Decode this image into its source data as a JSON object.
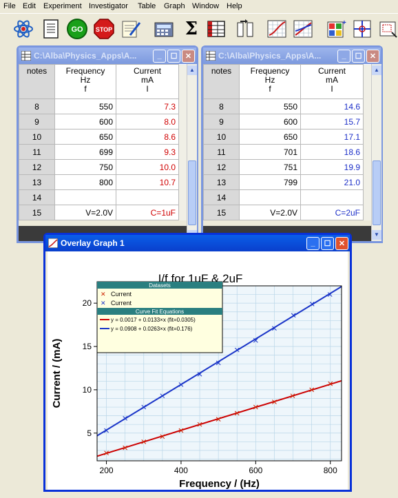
{
  "menu": [
    "File",
    "Edit",
    "Experiment",
    "Investigator",
    "Table",
    "Graph",
    "Window",
    "Help"
  ],
  "toolbar": {
    "buttons": [
      {
        "name": "atom-icon",
        "label": ""
      },
      {
        "name": "notebook-icon",
        "label": ""
      },
      {
        "name": "go-button",
        "label": "GO"
      },
      {
        "name": "stop-button",
        "label": "STOP"
      },
      {
        "name": "notepad-icon",
        "label": ""
      },
      {
        "name": "calculator-icon",
        "label": ""
      },
      {
        "name": "sigma-icon",
        "label": "Σ"
      },
      {
        "name": "table-icon",
        "label": ""
      },
      {
        "name": "swap-columns-icon",
        "label": ""
      },
      {
        "name": "line-graph-icon",
        "label": ""
      },
      {
        "name": "overlay-graph-icon",
        "label": ""
      },
      {
        "name": "grid-tool-icon",
        "label": ""
      },
      {
        "name": "crosshair-icon",
        "label": ""
      },
      {
        "name": "zoom-icon",
        "label": ""
      }
    ],
    "sigma_label": "Σ",
    "go_label": "GO",
    "stop_label": "STOP"
  },
  "table1": {
    "title": "C:\\Alba\\Physics_Apps\\A...",
    "headers": {
      "notes": "notes",
      "col1": [
        "Frequency",
        "Hz",
        "f"
      ],
      "col2": [
        "Current",
        "mA",
        "I"
      ]
    },
    "rows": [
      {
        "n": "8",
        "f": "550",
        "i": "7.3"
      },
      {
        "n": "9",
        "f": "600",
        "i": "8.0"
      },
      {
        "n": "10",
        "f": "650",
        "i": "8.6"
      },
      {
        "n": "11",
        "f": "699",
        "i": "9.3"
      },
      {
        "n": "12",
        "f": "750",
        "i": "10.0"
      },
      {
        "n": "13",
        "f": "800",
        "i": "10.7"
      },
      {
        "n": "14",
        "f": "",
        "i": ""
      },
      {
        "n": "15",
        "f": "V=2.0V",
        "i": "C=1uF"
      }
    ]
  },
  "table2": {
    "title": "C:\\Alba\\Physics_Apps\\A...",
    "headers": {
      "notes": "notes",
      "col1": [
        "Frequency",
        "Hz",
        "f"
      ],
      "col2": [
        "Current",
        "mA",
        "I"
      ]
    },
    "rows": [
      {
        "n": "8",
        "f": "550",
        "i": "14.6"
      },
      {
        "n": "9",
        "f": "600",
        "i": "15.7"
      },
      {
        "n": "10",
        "f": "650",
        "i": "17.1"
      },
      {
        "n": "11",
        "f": "701",
        "i": "18.6"
      },
      {
        "n": "12",
        "f": "751",
        "i": "19.9"
      },
      {
        "n": "13",
        "f": "799",
        "i": "21.0"
      },
      {
        "n": "14",
        "f": "",
        "i": ""
      },
      {
        "n": "15",
        "f": "V=2.0V",
        "i": "C=2uF"
      }
    ]
  },
  "graph_window": {
    "title": "Overlay Graph 1",
    "legend": {
      "datasets_header": "Datasets",
      "datasets": [
        {
          "label": "Current",
          "color": "#cc2200"
        },
        {
          "label": "Current",
          "color": "#1a35c8"
        }
      ],
      "fits_header": "Curve Fit Equations",
      "fits": [
        {
          "label": "y = 0.0017 + 0.0133×x (fit=0.0305)",
          "color": "#cc0000"
        },
        {
          "label": "y = 0.0908 + 0.0263×x (fit=0.176)",
          "color": "#1a35c8"
        }
      ]
    }
  },
  "chart_data": {
    "type": "scatter",
    "title": "I/f for 1uF & 2uF",
    "xlabel": "Frequency / (Hz)",
    "ylabel": "Current / (mA)",
    "xlim": [
      175,
      830
    ],
    "ylim": [
      1.8,
      22
    ],
    "xticks": [
      200,
      400,
      600,
      800
    ],
    "yticks": [
      5,
      10,
      15,
      20
    ],
    "grid": true,
    "legend_position": "top-left",
    "series": [
      {
        "color": "#cc2200",
        "points": [
          [
            200,
            2.7
          ],
          [
            250,
            3.3
          ],
          [
            300,
            4.0
          ],
          [
            350,
            4.6
          ],
          [
            400,
            5.3
          ],
          [
            450,
            6.0
          ],
          [
            500,
            6.6
          ],
          [
            550,
            7.3
          ],
          [
            600,
            8.0
          ],
          [
            650,
            8.6
          ],
          [
            699,
            9.3
          ],
          [
            750,
            10.0
          ],
          [
            800,
            10.7
          ]
        ],
        "fit": {
          "intercept": 0.0017,
          "slope": 0.0133,
          "color": "#cc0000"
        }
      },
      {
        "color": "#1a35c8",
        "points": [
          [
            200,
            5.3
          ],
          [
            250,
            6.7
          ],
          [
            300,
            8.0
          ],
          [
            350,
            9.3
          ],
          [
            400,
            10.6
          ],
          [
            450,
            11.8
          ],
          [
            500,
            13.1
          ],
          [
            550,
            14.6
          ],
          [
            600,
            15.7
          ],
          [
            650,
            17.1
          ],
          [
            701,
            18.6
          ],
          [
            751,
            19.9
          ],
          [
            799,
            21.0
          ]
        ],
        "fit": {
          "intercept": 0.0908,
          "slope": 0.0263,
          "color": "#1a35c8"
        }
      }
    ]
  }
}
